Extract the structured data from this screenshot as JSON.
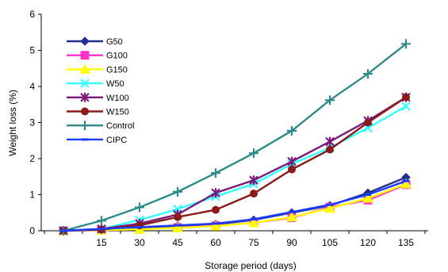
{
  "chart_data": {
    "type": "line",
    "xlabel": "Storage period (days)",
    "ylabel": "Weight loss (%)",
    "ylim": [
      0,
      6
    ],
    "yticks": [
      0,
      1,
      2,
      3,
      4,
      5,
      6
    ],
    "x": [
      0,
      15,
      30,
      45,
      60,
      75,
      90,
      105,
      120,
      135
    ],
    "xtick_labels": [
      "",
      "15",
      "30",
      "45",
      "60",
      "75",
      "90",
      "105",
      "120",
      "135"
    ],
    "grid": false,
    "legend_position": "top-left",
    "series": [
      {
        "name": "G50",
        "color": "#1f2f8f",
        "marker": "diamond",
        "values": [
          0,
          0.04,
          0.08,
          0.13,
          0.18,
          0.3,
          0.5,
          0.7,
          1.05,
          1.48
        ]
      },
      {
        "name": "G100",
        "color": "#ff33cc",
        "marker": "square",
        "values": [
          0,
          0.02,
          0.04,
          0.09,
          0.14,
          0.22,
          0.36,
          0.65,
          0.85,
          1.28
        ]
      },
      {
        "name": "G150",
        "color": "#ffff00",
        "marker": "triangle",
        "values": [
          0,
          0.02,
          0.04,
          0.08,
          0.13,
          0.22,
          0.38,
          0.62,
          0.9,
          1.3
        ]
      },
      {
        "name": "W50",
        "color": "#33ffff",
        "marker": "x",
        "values": [
          0,
          0.05,
          0.3,
          0.6,
          0.95,
          1.3,
          1.85,
          2.3,
          2.85,
          3.45
        ]
      },
      {
        "name": "W100",
        "color": "#7a1a7a",
        "marker": "star",
        "values": [
          0,
          0.05,
          0.2,
          0.45,
          1.05,
          1.4,
          1.92,
          2.47,
          3.05,
          3.7
        ]
      },
      {
        "name": "W150",
        "color": "#8b1a1a",
        "marker": "circle",
        "values": [
          0,
          0.03,
          0.15,
          0.38,
          0.58,
          1.03,
          1.7,
          2.25,
          3.0,
          3.7
        ]
      },
      {
        "name": "Control",
        "color": "#2e8b8b",
        "marker": "plus",
        "values": [
          0,
          0.28,
          0.65,
          1.08,
          1.6,
          2.15,
          2.77,
          3.62,
          4.35,
          5.18
        ]
      },
      {
        "name": "CIPC",
        "color": "#1a3cff",
        "marker": "dash",
        "values": [
          0,
          0.05,
          0.1,
          0.15,
          0.2,
          0.32,
          0.52,
          0.72,
          1.0,
          1.38
        ]
      }
    ]
  }
}
